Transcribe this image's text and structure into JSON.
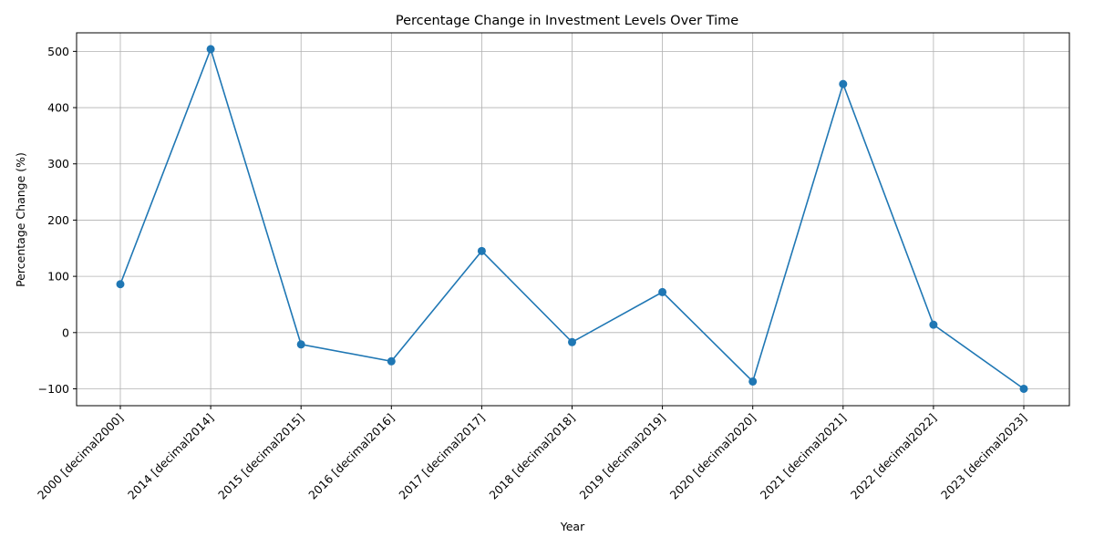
{
  "chart_data": {
    "type": "line",
    "title": "Percentage Change in Investment Levels Over Time",
    "xlabel": "Year",
    "ylabel": "Percentage Change (%)",
    "categories": [
      "2000 [decimal2000]",
      "2014 [decimal2014]",
      "2015 [decimal2015]",
      "2016 [decimal2016]",
      "2017 [decimal2017]",
      "2018 [decimal2018]",
      "2019 [decimal2019]",
      "2020 [decimal2020]",
      "2021 [decimal2021]",
      "2022 [decimal2022]",
      "2023 [decimal2023]"
    ],
    "values": [
      86,
      504,
      -21,
      -51,
      145,
      -17,
      72,
      -87,
      442,
      14,
      -100
    ],
    "yticks": [
      -100,
      0,
      100,
      200,
      300,
      400,
      500
    ],
    "ylim": [
      -130,
      533
    ],
    "grid": true,
    "marker": "circle",
    "color": "#1f77b4"
  }
}
